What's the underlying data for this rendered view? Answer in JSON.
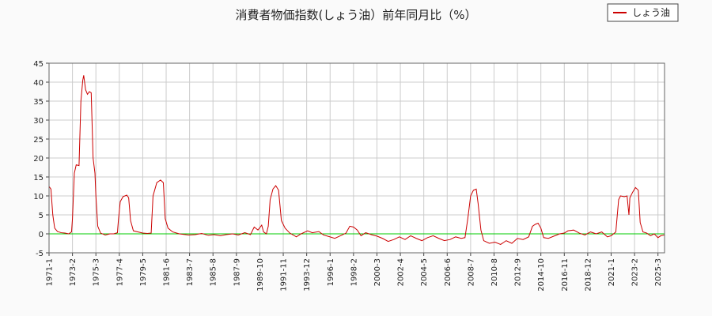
{
  "chart_data": {
    "type": "line",
    "title": "消費者物価指数(しょう油）前年同月比（%）",
    "xlabel": "",
    "ylabel": "",
    "ylim": [
      -5,
      45
    ],
    "yticks": [
      -5,
      0,
      5,
      10,
      15,
      20,
      25,
      30,
      35,
      40,
      45
    ],
    "xlim": [
      "1971-01",
      "1973-02",
      "1975-03",
      "1977-04",
      "1979-05",
      "1981-06",
      "1983-07",
      "1985-08",
      "1987-09",
      "1989-10",
      "1991-11",
      "1993-12",
      "1996-01",
      "1998-02",
      "2000-03",
      "2002-04",
      "2004-05",
      "2006-06",
      "2008-07",
      "2010-08",
      "2012-09",
      "2014-10",
      "2016-11",
      "2018-12",
      "2021-01",
      "2023-02",
      "2025-03",
      "2025-10"
    ],
    "xticks": [
      "1971-1",
      "1973-2",
      "1975-3",
      "1977-4",
      "1979-5",
      "1981-6",
      "1983-7",
      "1985-8",
      "1987-9",
      "1989-10",
      "1991-11",
      "1993-12",
      "1996-1",
      "1998-2",
      "2000-3",
      "2002-4",
      "2004-5",
      "2006-6",
      "2008-7",
      "2010-8",
      "2012-9",
      "2014-10",
      "2016-11",
      "2018-12",
      "2021-1",
      "2023-2",
      "2025-3"
    ],
    "grid": true,
    "legend": "top-right",
    "reference_line": {
      "y": 0,
      "color": "#00cc00"
    },
    "series": [
      {
        "name": "しょう油",
        "color": "#cc0000",
        "points": [
          [
            "1971-01",
            12.5
          ],
          [
            "1971-03",
            11.8
          ],
          [
            "1971-05",
            5.0
          ],
          [
            "1971-07",
            1.5
          ],
          [
            "1971-10",
            0.6
          ],
          [
            "1972-02",
            0.3
          ],
          [
            "1972-06",
            0.2
          ],
          [
            "1972-10",
            0.0
          ],
          [
            "1973-01",
            0.5
          ],
          [
            "1973-02",
            4.0
          ],
          [
            "1973-04",
            16.0
          ],
          [
            "1973-06",
            18.2
          ],
          [
            "1973-09",
            18.0
          ],
          [
            "1973-11",
            35.0
          ],
          [
            "1974-01",
            40.5
          ],
          [
            "1974-02",
            41.8
          ],
          [
            "1974-04",
            38.0
          ],
          [
            "1974-06",
            36.8
          ],
          [
            "1974-08",
            37.5
          ],
          [
            "1974-10",
            37.2
          ],
          [
            "1974-12",
            20.0
          ],
          [
            "1975-02",
            16.0
          ],
          [
            "1975-03",
            10.0
          ],
          [
            "1975-05",
            2.0
          ],
          [
            "1975-08",
            0.2
          ],
          [
            "1976-01",
            -0.3
          ],
          [
            "1976-06",
            0.0
          ],
          [
            "1976-10",
            0.0
          ],
          [
            "1977-02",
            0.3
          ],
          [
            "1977-03",
            3.5
          ],
          [
            "1977-05",
            8.5
          ],
          [
            "1977-08",
            9.8
          ],
          [
            "1977-12",
            10.2
          ],
          [
            "1978-02",
            9.5
          ],
          [
            "1978-04",
            3.5
          ],
          [
            "1978-07",
            0.8
          ],
          [
            "1978-12",
            0.5
          ],
          [
            "1979-05",
            0.2
          ],
          [
            "1979-10",
            0.1
          ],
          [
            "1980-02",
            0.2
          ],
          [
            "1980-04",
            10.0
          ],
          [
            "1980-08",
            13.5
          ],
          [
            "1980-12",
            14.2
          ],
          [
            "1981-03",
            13.5
          ],
          [
            "1981-05",
            4.0
          ],
          [
            "1981-08",
            1.5
          ],
          [
            "1982-01",
            0.5
          ],
          [
            "1982-08",
            0.0
          ],
          [
            "1983-06",
            -0.3
          ],
          [
            "1984-01",
            -0.2
          ],
          [
            "1984-08",
            0.1
          ],
          [
            "1985-03",
            -0.4
          ],
          [
            "1985-09",
            -0.2
          ],
          [
            "1986-04",
            -0.5
          ],
          [
            "1986-10",
            -0.2
          ],
          [
            "1987-05",
            0.0
          ],
          [
            "1987-11",
            -0.3
          ],
          [
            "1988-06",
            0.3
          ],
          [
            "1988-12",
            -0.2
          ],
          [
            "1989-04",
            1.8
          ],
          [
            "1989-08",
            1.0
          ],
          [
            "1989-12",
            2.3
          ],
          [
            "1990-02",
            0.5
          ],
          [
            "1990-05",
            0.0
          ],
          [
            "1990-07",
            2.0
          ],
          [
            "1990-09",
            9.0
          ],
          [
            "1990-12",
            11.8
          ],
          [
            "1991-03",
            12.7
          ],
          [
            "1991-06",
            11.5
          ],
          [
            "1991-09",
            3.5
          ],
          [
            "1992-01",
            1.5
          ],
          [
            "1992-06",
            0.2
          ],
          [
            "1993-01",
            -0.8
          ],
          [
            "1993-06",
            0.0
          ],
          [
            "1994-01",
            0.8
          ],
          [
            "1994-06",
            0.3
          ],
          [
            "1995-01",
            0.6
          ],
          [
            "1995-06",
            -0.3
          ],
          [
            "1996-01",
            -0.8
          ],
          [
            "1996-06",
            -1.2
          ],
          [
            "1996-12",
            -0.5
          ],
          [
            "1997-06",
            0.2
          ],
          [
            "1997-10",
            2.0
          ],
          [
            "1998-02",
            1.8
          ],
          [
            "1998-06",
            1.0
          ],
          [
            "1998-10",
            -0.5
          ],
          [
            "1999-03",
            0.3
          ],
          [
            "1999-09",
            -0.2
          ],
          [
            "2000-03",
            -0.6
          ],
          [
            "2000-09",
            -1.2
          ],
          [
            "2001-03",
            -2.0
          ],
          [
            "2001-09",
            -1.5
          ],
          [
            "2002-03",
            -0.8
          ],
          [
            "2002-09",
            -1.5
          ],
          [
            "2003-03",
            -0.5
          ],
          [
            "2003-09",
            -1.2
          ],
          [
            "2004-03",
            -1.8
          ],
          [
            "2004-09",
            -1.0
          ],
          [
            "2005-03",
            -0.5
          ],
          [
            "2005-09",
            -1.2
          ],
          [
            "2006-03",
            -1.8
          ],
          [
            "2006-09",
            -1.5
          ],
          [
            "2007-03",
            -0.8
          ],
          [
            "2007-09",
            -1.2
          ],
          [
            "2008-01",
            -1.0
          ],
          [
            "2008-04",
            4.0
          ],
          [
            "2008-07",
            10.0
          ],
          [
            "2008-10",
            11.5
          ],
          [
            "2009-01",
            11.8
          ],
          [
            "2009-03",
            8.0
          ],
          [
            "2009-06",
            1.0
          ],
          [
            "2009-09",
            -1.8
          ],
          [
            "2010-03",
            -2.5
          ],
          [
            "2010-09",
            -2.2
          ],
          [
            "2011-03",
            -2.8
          ],
          [
            "2011-09",
            -1.8
          ],
          [
            "2012-03",
            -2.5
          ],
          [
            "2012-09",
            -1.2
          ],
          [
            "2013-03",
            -1.5
          ],
          [
            "2013-09",
            -0.8
          ],
          [
            "2014-01",
            2.0
          ],
          [
            "2014-04",
            2.5
          ],
          [
            "2014-07",
            2.8
          ],
          [
            "2014-10",
            1.5
          ],
          [
            "2015-01",
            -1.0
          ],
          [
            "2015-06",
            -1.2
          ],
          [
            "2016-01",
            -0.5
          ],
          [
            "2016-06",
            0.0
          ],
          [
            "2016-11",
            0.2
          ],
          [
            "2017-03",
            0.8
          ],
          [
            "2017-09",
            1.0
          ],
          [
            "2018-03",
            0.2
          ],
          [
            "2018-09",
            -0.3
          ],
          [
            "2019-03",
            0.5
          ],
          [
            "2019-09",
            0.0
          ],
          [
            "2020-03",
            0.5
          ],
          [
            "2020-09",
            -0.8
          ],
          [
            "2021-01",
            -0.5
          ],
          [
            "2021-06",
            0.5
          ],
          [
            "2021-09",
            9.0
          ],
          [
            "2021-11",
            10.0
          ],
          [
            "2022-03",
            9.8
          ],
          [
            "2022-06",
            10.0
          ],
          [
            "2022-08",
            5.0
          ],
          [
            "2022-09",
            9.5
          ],
          [
            "2022-12",
            11.0
          ],
          [
            "2023-03",
            12.2
          ],
          [
            "2023-06",
            11.5
          ],
          [
            "2023-08",
            3.0
          ],
          [
            "2023-11",
            0.5
          ],
          [
            "2024-03",
            0.2
          ],
          [
            "2024-07",
            -0.5
          ],
          [
            "2024-11",
            0.0
          ],
          [
            "2025-03",
            -1.0
          ],
          [
            "2025-06",
            -0.5
          ],
          [
            "2025-10",
            -0.3
          ]
        ]
      }
    ]
  }
}
